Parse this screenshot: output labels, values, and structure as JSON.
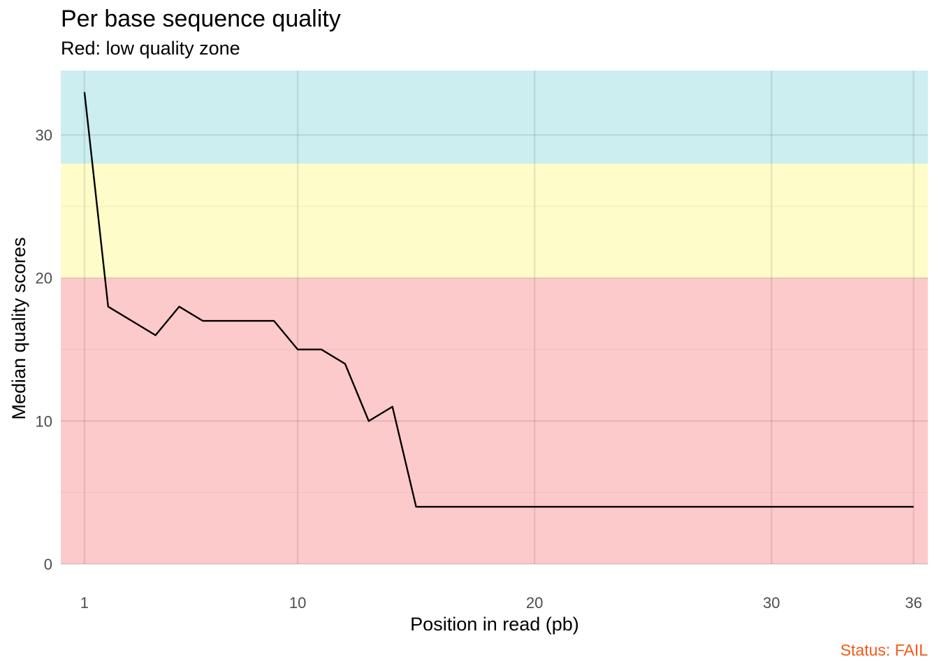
{
  "chart_data": {
    "type": "line",
    "title": "Per base sequence quality",
    "subtitle": "Red: low quality zone",
    "xlabel": "Position in read (pb)",
    "ylabel": "Median quality scores",
    "status": "Status: FAIL",
    "status_color": "#f05a16",
    "xlim": [
      0,
      36.6
    ],
    "ylim": [
      0,
      34.5
    ],
    "x_ticks": [
      1,
      10,
      20,
      30,
      36
    ],
    "y_ticks": [
      0,
      10,
      20,
      30
    ],
    "x": [
      1,
      2,
      3,
      4,
      5,
      6,
      7,
      8,
      9,
      10,
      11,
      12,
      13,
      14,
      15,
      16,
      17,
      18,
      19,
      20,
      21,
      22,
      23,
      24,
      25,
      26,
      27,
      28,
      29,
      30,
      31,
      32,
      33,
      34,
      35,
      36
    ],
    "y": [
      33,
      18,
      17,
      16,
      18,
      17,
      17,
      17,
      17,
      15,
      15,
      14,
      10,
      11,
      4,
      4,
      4,
      4,
      4,
      4,
      4,
      4,
      4,
      4,
      4,
      4,
      4,
      4,
      4,
      4,
      4,
      4,
      4,
      4,
      4,
      4
    ],
    "zones": [
      {
        "from": 28,
        "to": 34.5,
        "color": "#cceef0"
      },
      {
        "from": 20,
        "to": 28,
        "color": "#fefcc9"
      },
      {
        "from": 0,
        "to": 20,
        "color": "#fdcacb"
      }
    ],
    "line_color": "#000000",
    "grid": true
  }
}
